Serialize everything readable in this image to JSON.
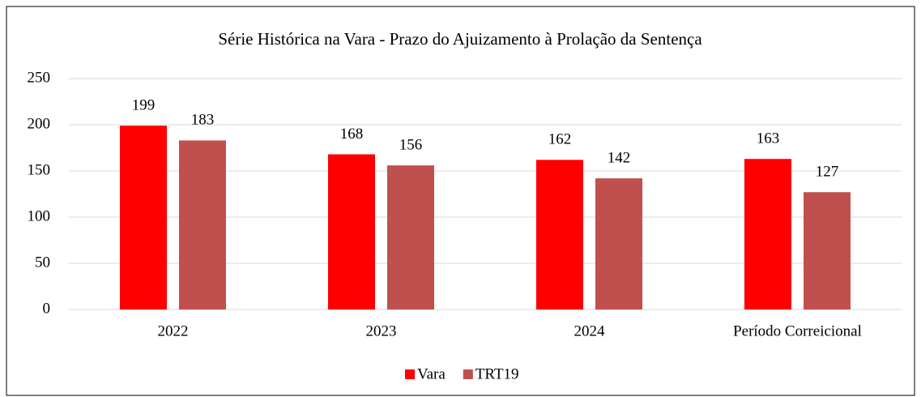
{
  "chart_data": {
    "type": "bar",
    "title": "Série Histórica na Vara - Prazo do Ajuizamento à Prolação da Sentença",
    "categories": [
      "2022",
      "2023",
      "2024",
      "Período Correicional"
    ],
    "series": [
      {
        "name": "Vara",
        "color": "#ff0000",
        "values": [
          199,
          168,
          162,
          163
        ]
      },
      {
        "name": "TRT19",
        "color": "#c0504d",
        "values": [
          183,
          156,
          142,
          127
        ]
      }
    ],
    "ylim": [
      0,
      250
    ],
    "yticks": [
      0,
      50,
      100,
      150,
      200,
      250
    ],
    "grid": true,
    "legend": "bottom"
  }
}
